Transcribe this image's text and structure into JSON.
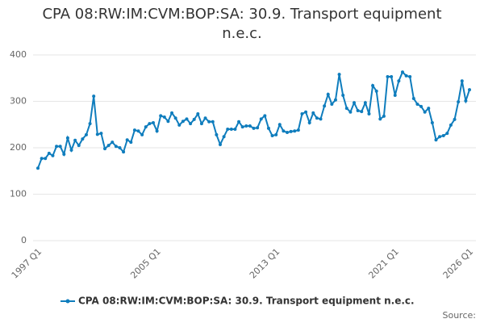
{
  "chart_data": {
    "type": "line",
    "title": "CPA 08:RW:IM:CVM:BOP:SA: 30.9. Transport equipment n.e.c.",
    "source": "Source:",
    "categories": [
      "1997 Q1",
      null,
      null,
      null,
      null,
      null,
      null,
      null,
      null,
      null,
      null,
      null,
      null,
      null,
      null,
      null,
      null,
      null,
      null,
      null,
      null,
      null,
      null,
      null,
      null,
      null,
      null,
      null,
      null,
      null,
      null,
      null,
      "2005 Q1",
      null,
      null,
      null,
      null,
      null,
      null,
      null,
      null,
      null,
      null,
      null,
      null,
      null,
      null,
      null,
      null,
      null,
      null,
      null,
      null,
      null,
      null,
      null,
      null,
      null,
      null,
      null,
      null,
      null,
      null,
      null,
      "2013 Q1",
      null,
      null,
      null,
      null,
      null,
      null,
      null,
      null,
      null,
      null,
      null,
      null,
      null,
      null,
      null,
      null,
      null,
      null,
      null,
      null,
      null,
      null,
      null,
      null,
      null,
      null,
      null,
      null,
      null,
      null,
      null,
      "2021 Q1",
      null,
      null,
      null,
      null,
      null,
      null,
      null,
      null,
      null,
      null,
      null,
      null,
      null,
      null,
      null,
      null,
      null,
      null,
      null,
      "2026 Q1"
    ],
    "series": [
      {
        "name": "CPA 08:RW:IM:CVM:BOP:SA: 30.9. Transport equipment n.e.c.",
        "color": "#0f7dbd",
        "values": [
          156,
          177,
          177,
          188,
          183,
          203,
          203,
          186,
          221,
          195,
          216,
          205,
          219,
          228,
          252,
          311,
          229,
          231,
          198,
          205,
          212,
          203,
          200,
          191,
          217,
          212,
          238,
          236,
          228,
          245,
          252,
          254,
          236,
          269,
          266,
          257,
          275,
          264,
          249,
          257,
          262,
          252,
          261,
          273,
          252,
          264,
          256,
          256,
          228,
          207,
          224,
          240,
          240,
          240,
          256,
          245,
          247,
          247,
          242,
          243,
          262,
          269,
          242,
          226,
          228,
          250,
          236,
          233,
          235,
          236,
          238,
          273,
          277,
          254,
          275,
          264,
          262,
          290,
          315,
          294,
          303,
          358,
          313,
          285,
          277,
          297,
          280,
          278,
          297,
          273,
          334,
          322,
          262,
          268,
          353,
          353,
          313,
          344,
          363,
          355,
          353,
          306,
          294,
          289,
          277,
          285,
          254,
          217,
          224,
          226,
          231,
          249,
          261,
          299,
          344,
          301,
          325
        ]
      }
    ],
    "ylim": [
      0,
      400
    ],
    "yticks": [
      0,
      100,
      200,
      300,
      400
    ],
    "grid": true
  }
}
